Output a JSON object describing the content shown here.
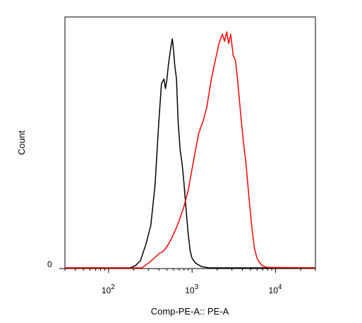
{
  "chart_data": {
    "type": "line",
    "title": "",
    "xlabel": "Comp-PE-A:: PE-A",
    "ylabel": "Count",
    "x_scale": "log",
    "xlim": [
      30,
      30000
    ],
    "ylim": [
      0,
      1
    ],
    "y_tick_labels": [
      "0"
    ],
    "x_ticks": [
      {
        "value": 100,
        "base": "10",
        "exp": "2"
      },
      {
        "value": 1000,
        "base": "10",
        "exp": "3"
      },
      {
        "value": 10000,
        "base": "10",
        "exp": "4"
      }
    ],
    "grid": false,
    "legend": "none",
    "series": [
      {
        "color": "#000000",
        "x": [
          30,
          180,
          210,
          240,
          280,
          320,
          360,
          400,
          430,
          460,
          480,
          500,
          520,
          540,
          560,
          580,
          600,
          620,
          650,
          680,
          720,
          760,
          800,
          850,
          900,
          950,
          1000,
          1100,
          1300,
          1600,
          30000
        ],
        "y": [
          0,
          0,
          0.01,
          0.03,
          0.1,
          0.18,
          0.35,
          0.62,
          0.78,
          0.8,
          0.76,
          0.8,
          0.86,
          0.9,
          0.94,
          0.97,
          0.92,
          0.86,
          0.8,
          0.62,
          0.5,
          0.44,
          0.36,
          0.24,
          0.14,
          0.07,
          0.04,
          0.02,
          0.005,
          0,
          0
        ]
      },
      {
        "color": "#ff0000",
        "x": [
          30,
          250,
          300,
          350,
          400,
          450,
          500,
          560,
          630,
          700,
          800,
          900,
          1000,
          1100,
          1200,
          1350,
          1500,
          1700,
          1900,
          2100,
          2300,
          2450,
          2600,
          2750,
          2900,
          3100,
          3300,
          3500,
          3800,
          4100,
          4400,
          4800,
          5200,
          5600,
          6000,
          6500,
          7000,
          8000,
          30000
        ],
        "y": [
          0,
          0,
          0.02,
          0.04,
          0.06,
          0.07,
          0.09,
          0.12,
          0.16,
          0.2,
          0.26,
          0.33,
          0.42,
          0.5,
          0.57,
          0.62,
          0.68,
          0.8,
          0.88,
          0.95,
          0.99,
          0.96,
          1.0,
          0.95,
          0.99,
          0.9,
          0.88,
          0.8,
          0.66,
          0.54,
          0.45,
          0.3,
          0.17,
          0.08,
          0.04,
          0.02,
          0.008,
          0.002,
          0
        ]
      }
    ]
  }
}
